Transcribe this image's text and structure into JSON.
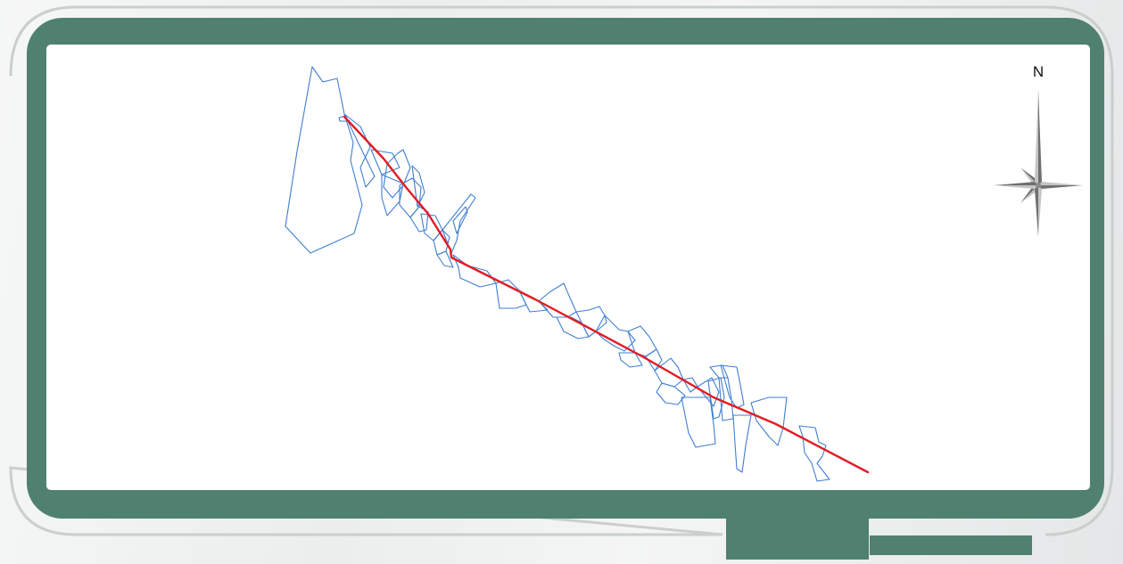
{
  "map": {
    "north_label": "N",
    "colors": {
      "frame": "#4f8070",
      "frame_outline": "#c9cfcd",
      "map_background": "#ffffff",
      "parcel_outline": "#3f7fd1",
      "route_line": "#e31b23",
      "compass_dark": "#707070",
      "compass_light": "#c4c4c4"
    },
    "layers": [
      {
        "name": "land parcels",
        "style": "blue outline polygons"
      },
      {
        "name": "route",
        "style": "red polyline"
      }
    ],
    "icons": [
      "north-arrow-compass-rose-icon"
    ]
  }
}
